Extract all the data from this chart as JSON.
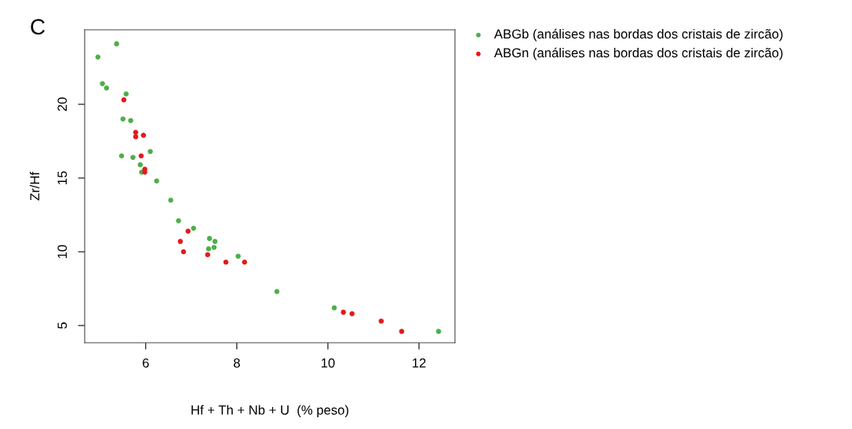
{
  "chart_data": {
    "type": "scatter",
    "title": "C",
    "xlabel": "Hf + Th + Nb + U  (% peso)",
    "ylabel": "Zr/Hf",
    "xlim": [
      4.66,
      12.79
    ],
    "ylim": [
      3.83,
      25.05
    ],
    "xticks": [
      6,
      8,
      10,
      12
    ],
    "yticks": [
      5,
      10,
      15,
      20
    ],
    "grid": false,
    "legend": "top right",
    "marker": "circle",
    "series": [
      {
        "name": "ABGb (análises nas bordas dos cristais de zircão)",
        "color": "#4daf4a",
        "x": [
          5.36,
          4.95,
          5.05,
          5.14,
          5.57,
          5.5,
          5.67,
          5.47,
          5.72,
          6.1,
          5.88,
          5.91,
          6.24,
          6.55,
          6.72,
          7.05,
          7.4,
          7.52,
          7.38,
          7.5,
          8.03,
          8.88,
          10.14,
          12.43
        ],
        "values": [
          24.1,
          23.2,
          21.4,
          21.1,
          20.7,
          19.0,
          18.9,
          16.5,
          16.4,
          16.8,
          15.9,
          15.4,
          14.8,
          13.5,
          12.1,
          11.6,
          10.9,
          10.7,
          10.2,
          10.3,
          9.7,
          7.3,
          6.2,
          4.6
        ]
      },
      {
        "name": "ABGn (análises nas bordas dos cristais de zircão)",
        "color": "#e41a1c",
        "x": [
          5.52,
          5.78,
          5.78,
          5.95,
          5.9,
          5.98,
          5.98,
          6.76,
          6.93,
          6.83,
          7.36,
          7.76,
          8.17,
          10.34,
          10.53,
          11.17,
          11.62
        ],
        "values": [
          20.3,
          18.1,
          17.8,
          17.9,
          16.5,
          15.6,
          15.4,
          10.7,
          11.4,
          10.0,
          9.8,
          9.3,
          9.3,
          5.9,
          5.8,
          5.3,
          4.6
        ]
      }
    ]
  }
}
